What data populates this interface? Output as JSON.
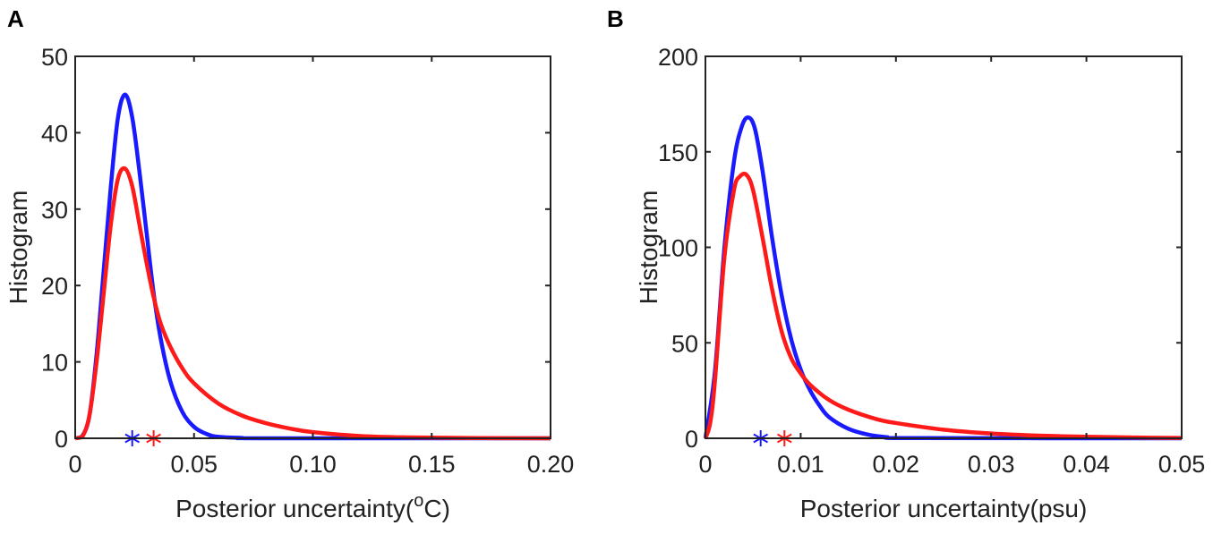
{
  "chart_data": [
    {
      "panel": "A",
      "type": "line",
      "title": "",
      "xlabel": "Posterior uncertainty(",
      "xlabel_super": "o",
      "xlabel_suffix": "C)",
      "ylabel": "Histogram",
      "xlim": [
        0,
        0.2
      ],
      "ylim": [
        0,
        50
      ],
      "xticks": [
        0,
        0.05,
        0.1,
        0.15,
        0.2
      ],
      "xtick_labels": [
        "0",
        "0.05",
        "0.10",
        "0.15",
        "0.20"
      ],
      "yticks": [
        0,
        10,
        20,
        30,
        40,
        50
      ],
      "ytick_labels": [
        "0",
        "10",
        "20",
        "30",
        "40",
        "50"
      ],
      "grid": false,
      "series": [
        {
          "name": "blue",
          "color": "#1a1aff",
          "x": [
            0,
            0.003,
            0.006,
            0.009,
            0.012,
            0.015,
            0.018,
            0.021,
            0.024,
            0.027,
            0.03,
            0.033,
            0.036,
            0.04,
            0.045,
            0.05,
            0.055,
            0.06,
            0.07,
            0.08,
            0.2
          ],
          "y": [
            0,
            0.3,
            3,
            11,
            22,
            33,
            42,
            45,
            42,
            35,
            27,
            19,
            13,
            7.5,
            3.5,
            1.5,
            0.6,
            0.2,
            0.05,
            0,
            0
          ],
          "marker_x": 0.024
        },
        {
          "name": "red",
          "color": "#ff1a1a",
          "x": [
            0,
            0.003,
            0.006,
            0.009,
            0.012,
            0.015,
            0.018,
            0.021,
            0.024,
            0.027,
            0.03,
            0.033,
            0.036,
            0.04,
            0.045,
            0.05,
            0.06,
            0.07,
            0.08,
            0.09,
            0.1,
            0.12,
            0.14,
            0.17,
            0.2
          ],
          "y": [
            0,
            0.2,
            3,
            10,
            19,
            28,
            34,
            35.3,
            33,
            28,
            23,
            18.5,
            15,
            12,
            9.2,
            7.2,
            4.6,
            3,
            2,
            1.3,
            0.8,
            0.3,
            0.12,
            0.03,
            0
          ],
          "marker_x": 0.033
        }
      ]
    },
    {
      "panel": "B",
      "type": "line",
      "title": "",
      "xlabel": "Posterior uncertainty(psu)",
      "ylabel": "Histogram",
      "xlim": [
        0,
        0.05
      ],
      "ylim": [
        0,
        200
      ],
      "xticks": [
        0,
        0.01,
        0.02,
        0.03,
        0.04,
        0.05
      ],
      "xtick_labels": [
        "0",
        "0.01",
        "0.02",
        "0.03",
        "0.04",
        "0.05"
      ],
      "yticks": [
        0,
        50,
        100,
        150,
        200
      ],
      "ytick_labels": [
        "0",
        "50",
        "100",
        "150",
        "200"
      ],
      "grid": false,
      "series": [
        {
          "name": "blue",
          "color": "#1a1aff",
          "x": [
            0,
            0.001,
            0.002,
            0.003,
            0.0038,
            0.0045,
            0.0052,
            0.006,
            0.007,
            0.008,
            0.009,
            0.01,
            0.011,
            0.012,
            0.013,
            0.015,
            0.017,
            0.019,
            0.022,
            0.05
          ],
          "y": [
            0,
            35,
            100,
            145,
            163,
            168,
            162,
            140,
            105,
            75,
            52,
            36,
            25,
            17,
            11,
            5,
            2,
            0.6,
            0.1,
            0
          ],
          "marker_x": 0.0058
        },
        {
          "name": "red",
          "color": "#ff1a1a",
          "x": [
            0,
            0.0005,
            0.001,
            0.002,
            0.003,
            0.0036,
            0.0043,
            0.005,
            0.006,
            0.007,
            0.008,
            0.009,
            0.01,
            0.011,
            0.013,
            0.015,
            0.018,
            0.02,
            0.025,
            0.03,
            0.035,
            0.04,
            0.045,
            0.05
          ],
          "y": [
            0,
            8,
            30,
            95,
            130,
            137,
            138,
            130,
            105,
            78,
            56,
            42,
            34,
            28,
            20,
            15,
            10,
            8,
            4.5,
            2.5,
            1.4,
            0.8,
            0.4,
            0.2
          ],
          "marker_x": 0.0083
        }
      ]
    }
  ]
}
